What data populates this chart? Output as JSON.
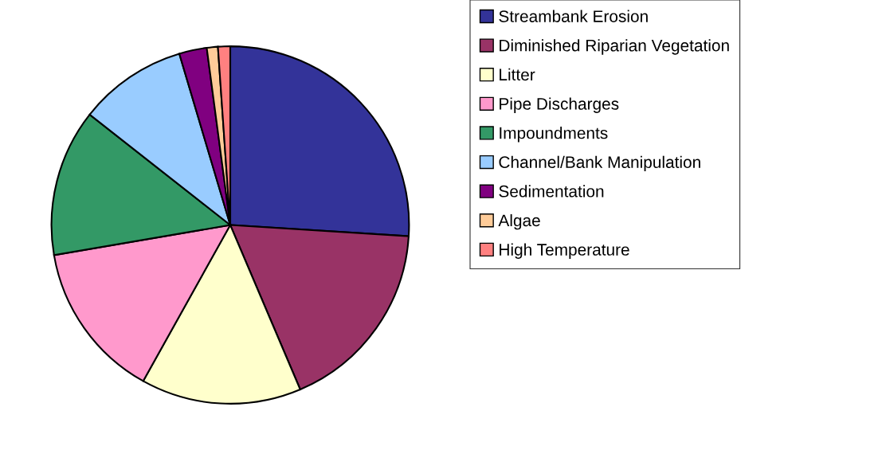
{
  "chart_data": {
    "type": "pie",
    "categories": [
      "Streambank Erosion",
      "Diminished Riparian Vegetation",
      "Litter",
      "Pipe Discharges",
      "Impoundments",
      "Channel/Bank Manipulation",
      "Sedimentation",
      "Algae",
      "High Temperature"
    ],
    "values": [
      26.0,
      17.6,
      14.5,
      14.2,
      13.3,
      9.8,
      2.5,
      1.0,
      1.1
    ],
    "colors": [
      "#333399",
      "#993366",
      "#ffffcc",
      "#ff99cc",
      "#339966",
      "#99ccff",
      "#800080",
      "#ffcc99",
      "#ff8080"
    ],
    "legend": "right"
  }
}
